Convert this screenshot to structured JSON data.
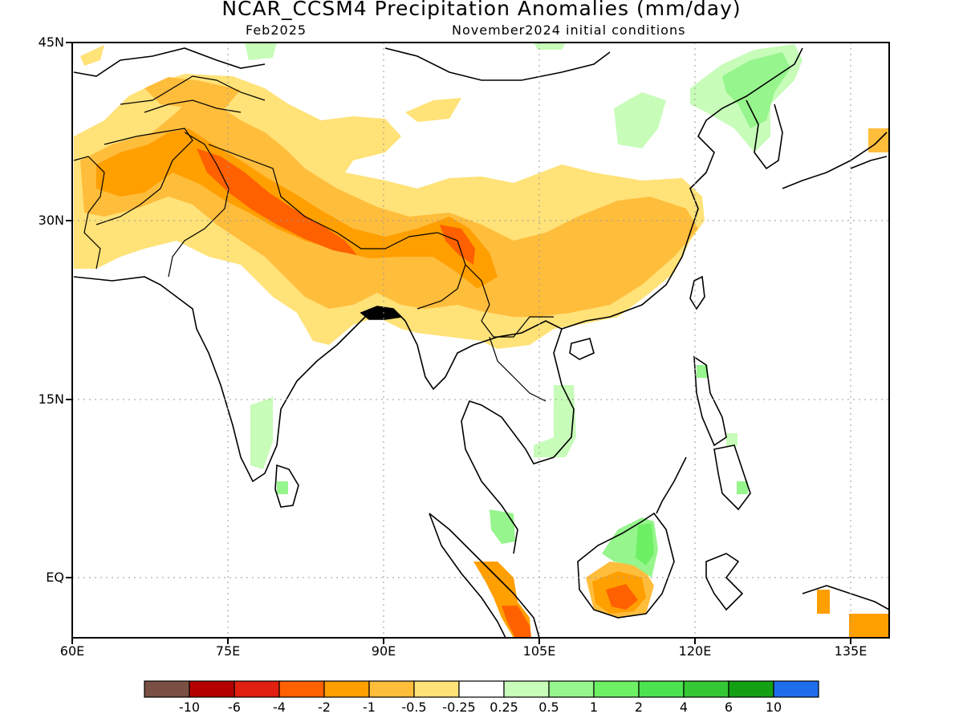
{
  "title": "NCAR_CCSM4 Precipitation Anomalies (mm/day)",
  "subtitle_left": "Feb2025",
  "subtitle_right": "November2024 initial conditions",
  "lat_labels": [
    "45N",
    "30N",
    "15N",
    "EQ"
  ],
  "lon_labels": [
    "60E",
    "75E",
    "90E",
    "105E",
    "120E",
    "135E"
  ],
  "colorbar": {
    "labels": [
      "-10",
      "-6",
      "-4",
      "-2",
      "-1",
      "-0.5",
      "-0.25",
      "0.25",
      "0.5",
      "1",
      "2",
      "4",
      "6",
      "10"
    ],
    "colors": [
      "#7a4f44",
      "#b40000",
      "#e02010",
      "#ff6000",
      "#ff9f00",
      "#ffbd3c",
      "#ffe278",
      "#ffffff",
      "#c7fcb9",
      "#96f58c",
      "#6ef064",
      "#4ce350",
      "#34c834",
      "#14a014",
      "#1e6eeb"
    ]
  },
  "colors": {
    "dry_light": "#ffe278",
    "dry_medium": "#ffbd3c",
    "dry_strong": "#ff9f00",
    "dry_heavy": "#ff6000",
    "wet_light": "#c7fcb9",
    "wet_medium": "#96f58c",
    "wet_strong": "#6ef064"
  }
}
